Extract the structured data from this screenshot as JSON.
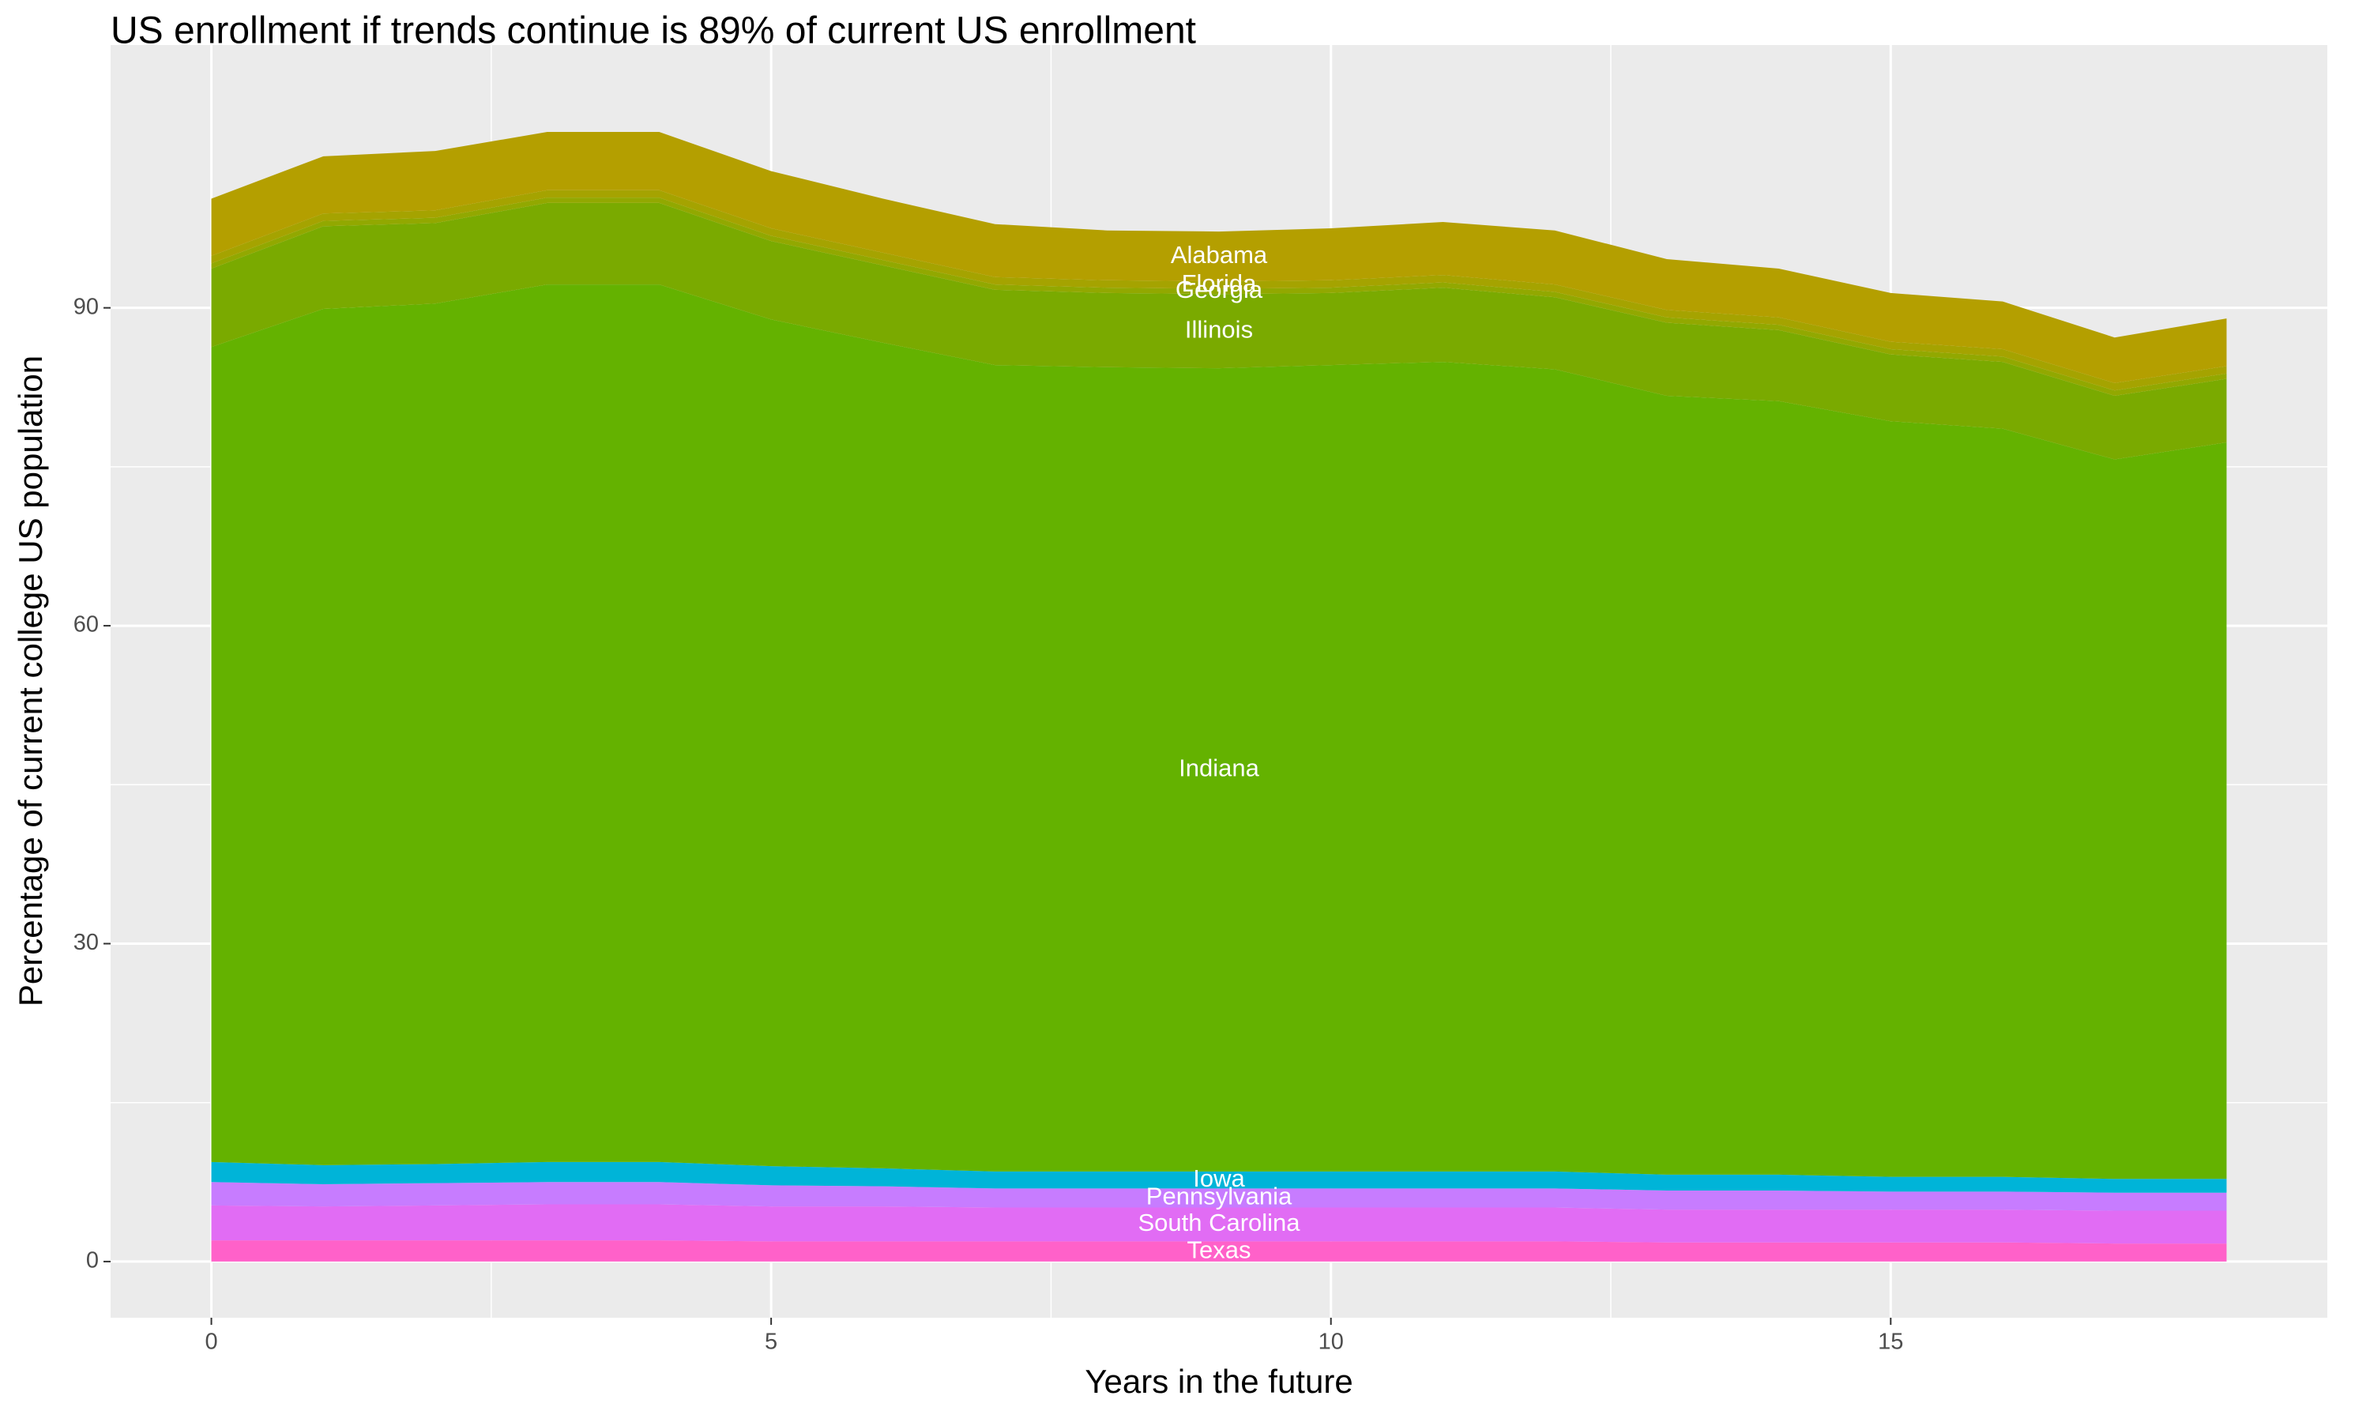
{
  "chart_data": {
    "type": "stacked-area",
    "title": "US enrollment if trends continue is 89% of current US enrollment",
    "x_label": "Years in the future",
    "y_label": "Percentage of current college US population",
    "x": [
      0,
      1,
      2,
      3,
      4,
      5,
      6,
      7,
      8,
      9,
      10,
      11,
      12,
      13,
      14,
      15,
      16,
      17,
      18
    ],
    "xlim": [
      -0.9,
      18.9
    ],
    "xticks": [
      0,
      5,
      10,
      15
    ],
    "ylim": [
      -5.3,
      114.8
    ],
    "yticks": [
      0,
      30,
      60,
      90
    ],
    "grid": true,
    "series": [
      {
        "name": "Texas",
        "color": "#ff61c9",
        "values": [
          2.0,
          2.0,
          2.0,
          2.0,
          2.0,
          1.9,
          1.9,
          1.9,
          1.9,
          1.9,
          1.9,
          1.9,
          1.9,
          1.8,
          1.8,
          1.8,
          1.8,
          1.7,
          1.7
        ]
      },
      {
        "name": "South Carolina",
        "color": "#e16cf4",
        "values": [
          3.3,
          3.2,
          3.3,
          3.4,
          3.4,
          3.3,
          3.3,
          3.2,
          3.2,
          3.2,
          3.2,
          3.2,
          3.2,
          3.1,
          3.1,
          3.1,
          3.1,
          3.1,
          3.1
        ]
      },
      {
        "name": "Pennsylvania",
        "color": "#c77cff",
        "values": [
          2.2,
          2.1,
          2.1,
          2.1,
          2.1,
          2.0,
          1.9,
          1.8,
          1.8,
          1.8,
          1.8,
          1.8,
          1.8,
          1.8,
          1.8,
          1.7,
          1.7,
          1.7,
          1.7
        ]
      },
      {
        "name": "Iowa",
        "color": "#00b4d8",
        "values": [
          1.9,
          1.8,
          1.8,
          1.9,
          1.9,
          1.8,
          1.7,
          1.6,
          1.6,
          1.6,
          1.6,
          1.6,
          1.6,
          1.5,
          1.5,
          1.4,
          1.4,
          1.3,
          1.3
        ]
      },
      {
        "name": "Indiana",
        "color": "#64b200",
        "values": [
          76.9,
          80.8,
          81.2,
          82.8,
          82.8,
          79.9,
          77.9,
          76.1,
          75.9,
          75.8,
          76.1,
          76.4,
          75.7,
          73.5,
          73.0,
          71.3,
          70.6,
          67.9,
          69.5
        ]
      },
      {
        "name": "Illinois",
        "color": "#7aaa00",
        "values": [
          7.4,
          7.8,
          7.6,
          7.7,
          7.7,
          7.4,
          7.3,
          7.1,
          7.0,
          7.0,
          6.8,
          7.0,
          6.8,
          6.9,
          6.7,
          6.3,
          6.3,
          6.0,
          6.0
        ]
      },
      {
        "name": "Georgia",
        "color": "#92a800",
        "values": [
          0.5,
          0.5,
          0.5,
          0.5,
          0.5,
          0.5,
          0.5,
          0.5,
          0.5,
          0.5,
          0.5,
          0.5,
          0.5,
          0.5,
          0.5,
          0.5,
          0.5,
          0.5,
          0.5
        ]
      },
      {
        "name": "Florida",
        "color": "#a5a300",
        "values": [
          0.7,
          0.7,
          0.7,
          0.7,
          0.7,
          0.7,
          0.7,
          0.7,
          0.7,
          0.7,
          0.7,
          0.7,
          0.7,
          0.7,
          0.7,
          0.7,
          0.7,
          0.7,
          0.7
        ]
      },
      {
        "name": "Alabama",
        "color": "#b49f00",
        "values": [
          5.4,
          5.4,
          5.6,
          5.5,
          5.5,
          5.4,
          5.1,
          5.0,
          4.7,
          4.7,
          4.9,
          5.0,
          5.1,
          4.8,
          4.6,
          4.6,
          4.5,
          4.3,
          4.5
        ]
      }
    ]
  }
}
